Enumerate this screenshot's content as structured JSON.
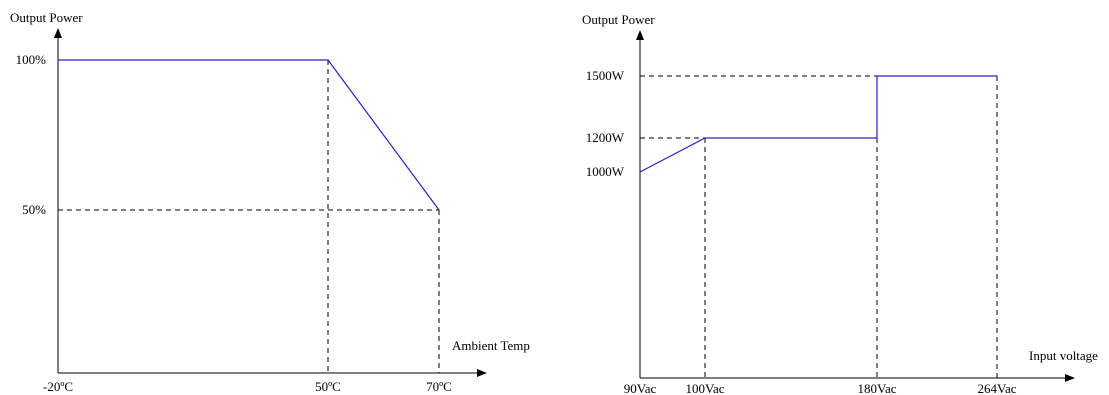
{
  "colors": {
    "series": "#2424c8",
    "axis": "#000000",
    "guide": "#000000"
  },
  "chart_data": [
    {
      "type": "line",
      "title": "",
      "ylabel": "Output Power",
      "xlabel": "Ambient Temp",
      "x_ticks": [
        {
          "value": -20,
          "label": "-20ºC"
        },
        {
          "value": 50,
          "label": "50ºC"
        },
        {
          "value": 70,
          "label": "70ºC"
        }
      ],
      "y_ticks": [
        {
          "value": 50,
          "label": "50%"
        },
        {
          "value": 100,
          "label": "100%"
        }
      ],
      "series": [
        {
          "values": [
            {
              "x": -20,
              "y": 100
            },
            {
              "x": 50,
              "y": 100
            },
            {
              "x": 70,
              "y": 50
            }
          ]
        }
      ],
      "guides": [
        {
          "from": {
            "x": 50,
            "y": 100
          },
          "to": {
            "x": 50,
            "y": 0
          }
        },
        {
          "from": {
            "x": 70,
            "y": 50
          },
          "to": {
            "x": 70,
            "y": 0
          }
        },
        {
          "from": {
            "x": -20,
            "y": 50
          },
          "to": {
            "x": 70,
            "y": 50
          }
        }
      ],
      "grid": false
    },
    {
      "type": "line",
      "title": "",
      "ylabel": "Output Power",
      "xlabel": "Input voltage",
      "x_ticks": [
        {
          "value": 90,
          "label": "90Vac"
        },
        {
          "value": 100,
          "label": "100Vac"
        },
        {
          "value": 180,
          "label": "180Vac"
        },
        {
          "value": 264,
          "label": "264Vac"
        }
      ],
      "y_ticks": [
        {
          "value": 1000,
          "label": "1000W"
        },
        {
          "value": 1200,
          "label": "1200W"
        },
        {
          "value": 1500,
          "label": "1500W"
        }
      ],
      "series": [
        {
          "values": [
            {
              "x": 90,
              "y": 1000
            },
            {
              "x": 100,
              "y": 1200
            },
            {
              "x": 180,
              "y": 1200
            },
            {
              "x": 180,
              "y": 1500
            },
            {
              "x": 264,
              "y": 1500
            }
          ]
        }
      ],
      "guides": [
        {
          "from": {
            "x": 90,
            "y": 1200
          },
          "to": {
            "x": 100,
            "y": 1200
          }
        },
        {
          "from": {
            "x": 90,
            "y": 1500
          },
          "to": {
            "x": 180,
            "y": 1500
          }
        },
        {
          "from": {
            "x": 100,
            "y": 1200
          },
          "to": {
            "x": 100,
            "y": 0
          }
        },
        {
          "from": {
            "x": 180,
            "y": 1200
          },
          "to": {
            "x": 180,
            "y": 0
          }
        },
        {
          "from": {
            "x": 264,
            "y": 1500
          },
          "to": {
            "x": 264,
            "y": 0
          }
        }
      ],
      "grid": false
    }
  ]
}
